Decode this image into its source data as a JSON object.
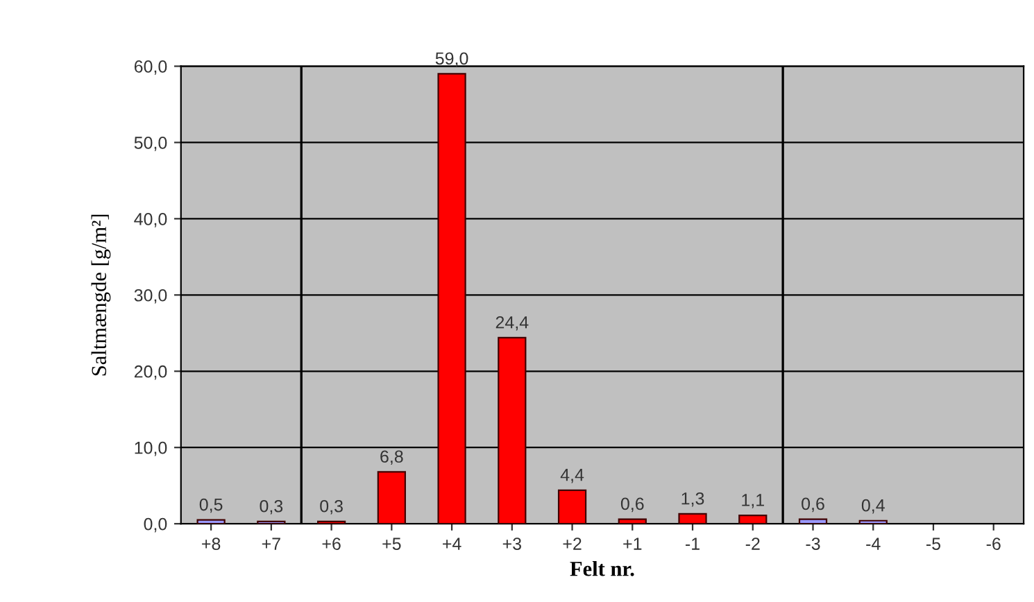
{
  "chart_data": {
    "type": "bar",
    "xlabel": "Felt nr.",
    "ylabel": "Saltmængde [g/m²]",
    "categories": [
      "+8",
      "+7",
      "+6",
      "+5",
      "+4",
      "+3",
      "+2",
      "+1",
      "-1",
      "-2",
      "-3",
      "-4",
      "-5",
      "-6"
    ],
    "values": [
      0.5,
      0.3,
      0.3,
      6.8,
      59.0,
      24.4,
      4.4,
      0.6,
      1.3,
      1.1,
      0.6,
      0.4,
      null,
      null
    ],
    "colors": [
      "#9999ff",
      "#9999ff",
      "#ff0000",
      "#ff0000",
      "#ff0000",
      "#ff0000",
      "#ff0000",
      "#ff0000",
      "#ff0000",
      "#ff0000",
      "#9999ff",
      "#9999ff",
      "#ff0000",
      "#ff0000"
    ],
    "value_labels": [
      "0,5",
      "0,3",
      "0,3",
      "6,8",
      "59,0",
      "24,4",
      "4,4",
      "0,6",
      "1,3",
      "1,1",
      "0,6",
      "0,4",
      null,
      null
    ],
    "ylim": [
      0,
      60
    ],
    "yticks": [
      {
        "value": 0,
        "label": "0,0"
      },
      {
        "value": 10,
        "label": "10,0"
      },
      {
        "value": 20,
        "label": "20,0"
      },
      {
        "value": 30,
        "label": "30,0"
      },
      {
        "value": 40,
        "label": "40,0"
      },
      {
        "value": 50,
        "label": "50,0"
      },
      {
        "value": 60,
        "label": "60,0"
      }
    ],
    "grid": "y",
    "legend": false
  }
}
